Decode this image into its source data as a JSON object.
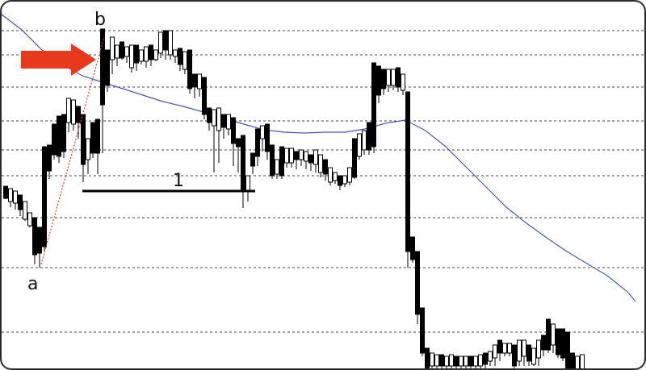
{
  "chart_data": {
    "type": "candlestick",
    "title": "",
    "xlabel": "",
    "ylabel": "",
    "grid": "horizontal-dashed",
    "ylim": [
      0,
      459
    ],
    "candles": [
      [
        5,
        230,
        229,
        244,
        245
      ],
      [
        11,
        238,
        232,
        248,
        255
      ],
      [
        17,
        242,
        235,
        250,
        258
      ],
      [
        23,
        246,
        240,
        258,
        266
      ],
      [
        29,
        256,
        248,
        270,
        272
      ],
      [
        35,
        266,
        262,
        278,
        280
      ],
      [
        41,
        274,
        268,
        314,
        326
      ],
      [
        47,
        304,
        280,
        312,
        330
      ],
      [
        53,
        212,
        180,
        304,
        310
      ],
      [
        59,
        186,
        178,
        210,
        220
      ],
      [
        65,
        180,
        152,
        190,
        196
      ],
      [
        71,
        184,
        142,
        192,
        200
      ],
      [
        77,
        158,
        140,
        186,
        194
      ],
      [
        83,
        134,
        120,
        150,
        162
      ],
      [
        89,
        144,
        122,
        152,
        160
      ],
      [
        95,
        144,
        130,
        150,
        170
      ],
      [
        101,
        150,
        140,
        202,
        224
      ],
      [
        107,
        186,
        170,
        196,
        214
      ],
      [
        113,
        168,
        150,
        188,
        194
      ],
      [
        119,
        184,
        146,
        188,
        214
      ],
      [
        125,
        118,
        34,
        128,
        188
      ],
      [
        131,
        78,
        60,
        104,
        112
      ],
      [
        137,
        70,
        44,
        72,
        90
      ],
      [
        143,
        68,
        54,
        70,
        80
      ],
      [
        149,
        66,
        50,
        70,
        72
      ],
      [
        155,
        64,
        56,
        68,
        76
      ],
      [
        161,
        80,
        54,
        82,
        88
      ],
      [
        167,
        64,
        54,
        76,
        86
      ],
      [
        173,
        70,
        60,
        74,
        78
      ],
      [
        179,
        68,
        56,
        74,
        82
      ],
      [
        185,
        66,
        54,
        72,
        80
      ],
      [
        191,
        68,
        60,
        72,
        74
      ],
      [
        197,
        42,
        38,
        64,
        70
      ],
      [
        203,
        40,
        36,
        60,
        72
      ],
      [
        209,
        40,
        36,
        66,
        72
      ],
      [
        215,
        64,
        60,
        68,
        76
      ],
      [
        221,
        64,
        58,
        78,
        86
      ],
      [
        227,
        70,
        62,
        84,
        90
      ],
      [
        233,
        76,
        60,
        108,
        114
      ],
      [
        239,
        98,
        90,
        106,
        120
      ],
      [
        245,
        104,
        90,
        108,
        118
      ],
      [
        251,
        104,
        94,
        140,
        146
      ],
      [
        257,
        140,
        132,
        150,
        160
      ],
      [
        263,
        146,
        134,
        154,
        212
      ],
      [
        269,
        150,
        132,
        160,
        200
      ],
      [
        275,
        150,
        140,
        156,
        170
      ],
      [
        281,
        148,
        140,
        158,
        166
      ],
      [
        287,
        154,
        144,
        176,
        204
      ],
      [
        293,
        176,
        170,
        180,
        212
      ],
      [
        299,
        178,
        166,
        234,
        256
      ],
      [
        305,
        232,
        216,
        234,
        248
      ],
      [
        311,
        198,
        188,
        204,
        214
      ],
      [
        317,
        170,
        158,
        192,
        204
      ],
      [
        323,
        162,
        154,
        170,
        186
      ],
      [
        329,
        158,
        152,
        186,
        196
      ],
      [
        335,
        186,
        178,
        216,
        220
      ],
      [
        341,
        204,
        196,
        214,
        220
      ],
      [
        347,
        188,
        180,
        216,
        220
      ],
      [
        353,
        188,
        182,
        200,
        206
      ],
      [
        359,
        190,
        182,
        200,
        206
      ],
      [
        365,
        194,
        186,
        196,
        208
      ],
      [
        371,
        192,
        184,
        196,
        204
      ],
      [
        377,
        196,
        186,
        198,
        208
      ],
      [
        383,
        196,
        190,
        200,
        210
      ],
      [
        389,
        196,
        184,
        202,
        212
      ],
      [
        395,
        198,
        190,
        212,
        218
      ],
      [
        401,
        202,
        196,
        214,
        222
      ],
      [
        407,
        212,
        206,
        224,
        228
      ],
      [
        413,
        218,
        212,
        222,
        226
      ],
      [
        419,
        222,
        216,
        228,
        234
      ],
      [
        425,
        222,
        216,
        226,
        230
      ],
      [
        431,
        214,
        206,
        224,
        228
      ],
      [
        437,
        190,
        170,
        218,
        220
      ],
      [
        443,
        182,
        164,
        192,
        196
      ],
      [
        449,
        176,
        160,
        184,
        190
      ],
      [
        455,
        160,
        150,
        184,
        190
      ],
      [
        461,
        104,
        76,
        180,
        188
      ],
      [
        467,
        92,
        80,
        116,
        126
      ],
      [
        473,
        100,
        84,
        108,
        116
      ],
      [
        479,
        96,
        84,
        104,
        112
      ],
      [
        485,
        94,
        84,
        104,
        110
      ],
      [
        491,
        92,
        82,
        106,
        112
      ],
      [
        497,
        98,
        90,
        110,
        116
      ],
      [
        503,
        114,
        112,
        310,
        330
      ],
      [
        509,
        310,
        292,
        320,
        324
      ],
      [
        515,
        318,
        310,
        388,
        400
      ],
      [
        521,
        388,
        380,
        436,
        440
      ],
      [
        527,
        438,
        430,
        459,
        459
      ],
      [
        533,
        444,
        436,
        452,
        459
      ],
      [
        539,
        444,
        438,
        452,
        459
      ],
      [
        545,
        444,
        438,
        452,
        459
      ],
      [
        551,
        446,
        440,
        452,
        459
      ],
      [
        557,
        446,
        438,
        452,
        459
      ],
      [
        563,
        446,
        440,
        452,
        459
      ],
      [
        569,
        446,
        440,
        452,
        459
      ],
      [
        575,
        446,
        440,
        452,
        459
      ],
      [
        581,
        446,
        440,
        452,
        459
      ],
      [
        587,
        446,
        440,
        452,
        459
      ],
      [
        593,
        444,
        438,
        452,
        459
      ],
      [
        599,
        442,
        436,
        450,
        459
      ],
      [
        605,
        440,
        434,
        446,
        452
      ],
      [
        611,
        432,
        426,
        442,
        452
      ],
      [
        617,
        430,
        420,
        436,
        446
      ],
      [
        623,
        430,
        424,
        436,
        440
      ],
      [
        629,
        432,
        424,
        436,
        440
      ],
      [
        635,
        434,
        426,
        452,
        459
      ],
      [
        641,
        428,
        420,
        446,
        452
      ],
      [
        647,
        428,
        420,
        440,
        452
      ],
      [
        653,
        432,
        426,
        446,
        452
      ],
      [
        659,
        436,
        430,
        450,
        452
      ],
      [
        665,
        428,
        420,
        442,
        452
      ],
      [
        671,
        420,
        414,
        432,
        440
      ],
      [
        677,
        414,
        394,
        432,
        436
      ],
      [
        683,
        418,
        400,
        426,
        436
      ],
      [
        689,
        420,
        406,
        438,
        442
      ],
      [
        695,
        428,
        406,
        442,
        446
      ],
      [
        701,
        430,
        410,
        459,
        459
      ],
      [
        707,
        440,
        436,
        459,
        459
      ],
      [
        713,
        446,
        440,
        459,
        459
      ],
      [
        719,
        440,
        438,
        459,
        459
      ]
    ],
    "moving_average": [
      [
        0,
        16
      ],
      [
        25,
        35
      ],
      [
        50,
        60
      ],
      [
        75,
        78
      ],
      [
        100,
        92
      ],
      [
        125,
        100
      ],
      [
        150,
        108
      ],
      [
        175,
        116
      ],
      [
        200,
        124
      ],
      [
        225,
        130
      ],
      [
        250,
        137
      ],
      [
        275,
        145
      ],
      [
        300,
        152
      ],
      [
        325,
        159
      ],
      [
        350,
        162
      ],
      [
        375,
        163
      ],
      [
        400,
        162
      ],
      [
        425,
        162
      ],
      [
        450,
        158
      ],
      [
        475,
        151
      ],
      [
        500,
        147
      ],
      [
        525,
        160
      ],
      [
        550,
        180
      ],
      [
        575,
        205
      ],
      [
        600,
        230
      ],
      [
        625,
        255
      ],
      [
        650,
        275
      ],
      [
        675,
        293
      ],
      [
        700,
        310
      ],
      [
        725,
        325
      ],
      [
        750,
        340
      ],
      [
        775,
        360
      ],
      [
        785,
        372
      ]
    ],
    "gridlines": [
      36,
      66,
      106,
      148,
      184,
      216,
      268,
      330,
      410
    ],
    "annotations": {
      "point_a": "a",
      "point_b": "b",
      "range_label": "1"
    }
  },
  "colors": {
    "bearish": "#000000",
    "bullish_fill": "#ffffff",
    "wick": "#000000",
    "moving_average": "#4a5aa8",
    "grid": "#444444",
    "arrow": "#e8391d",
    "trendline": "#e23b2a"
  }
}
